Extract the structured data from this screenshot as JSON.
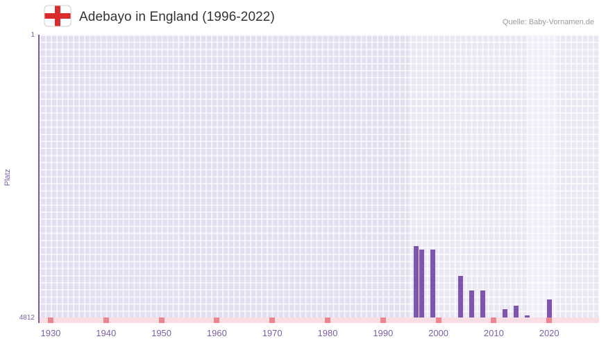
{
  "header": {
    "title": "Adebayo in England (1996-2022)",
    "source": "Quelle: Baby-Vornamen.de"
  },
  "chart_data": {
    "type": "bar",
    "title": "Adebayo in England (1996-2022)",
    "xlabel": "",
    "ylabel": "Platz",
    "y_axis": {
      "min": 1,
      "max": 4812,
      "inverted": true,
      "top_tick": "1",
      "bottom_tick": "4812"
    },
    "x_domain": [
      1928,
      2029
    ],
    "x_ticks": [
      "1930",
      "1940",
      "1950",
      "1960",
      "1970",
      "1980",
      "1990",
      "2000",
      "2010",
      "2020"
    ],
    "bars": [
      {
        "year": 1996,
        "rank": 3600
      },
      {
        "year": 1997,
        "rank": 3650
      },
      {
        "year": 1999,
        "rank": 3650
      },
      {
        "year": 2004,
        "rank": 4100
      },
      {
        "year": 2006,
        "rank": 4350
      },
      {
        "year": 2008,
        "rank": 4350
      },
      {
        "year": 2012,
        "rank": 4670
      },
      {
        "year": 2014,
        "rank": 4610
      },
      {
        "year": 2016,
        "rank": 4780
      },
      {
        "year": 2020,
        "rank": 4510
      }
    ],
    "background_bands": [
      {
        "from": 1928,
        "to": 1994.5,
        "shade": "base"
      },
      {
        "from": 1994.5,
        "to": 2016,
        "shade": "light"
      },
      {
        "from": 2016,
        "to": 2021.5,
        "shade": "lighter"
      },
      {
        "from": 2021.5,
        "to": 2029,
        "shade": "light"
      }
    ],
    "grid": true,
    "legend": false,
    "colors": {
      "bar": "#7e55ac",
      "band_base": "#e3dff0",
      "band_light": "#eae7f5",
      "band_lighter": "#f1eef9",
      "axis": "#7a5ba6",
      "tick_text": "#7a5fa9",
      "strip": "#f9dee3",
      "strip_mark": "#ec8492",
      "flag_cross": "#da2c2c",
      "title_text": "#333333",
      "source_text": "#9b9b9b"
    }
  }
}
